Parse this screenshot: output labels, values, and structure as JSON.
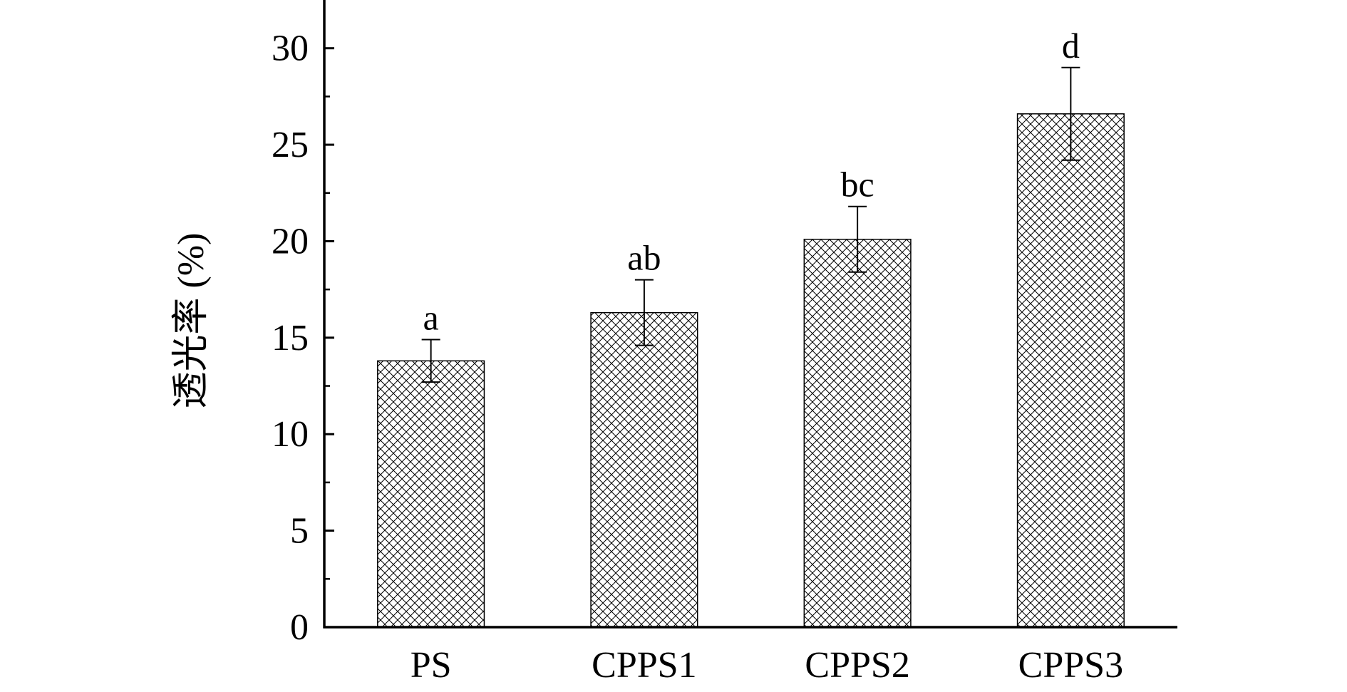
{
  "chart_data": {
    "type": "bar",
    "categories": [
      "PS",
      "CPPS1",
      "CPPS2",
      "CPPS3"
    ],
    "values": [
      13.8,
      16.3,
      20.1,
      26.6
    ],
    "errors": [
      1.1,
      1.7,
      1.7,
      2.4
    ],
    "significance_labels": [
      "a",
      "ab",
      "bc",
      "d"
    ],
    "ylabel": "透光率 (%)",
    "xlabel": "",
    "ylim": [
      0,
      32.5
    ],
    "y_ticks": [
      0,
      5,
      10,
      15,
      20,
      25,
      30
    ],
    "y_tick_labels": [
      "0",
      "5",
      "10",
      "15",
      "20",
      "25",
      "30"
    ],
    "grid": false,
    "bar_fill": "crosshatch",
    "colors": {
      "axis": "#000000",
      "bar_stroke": "#000000",
      "hatch": "#000000",
      "background": "#ffffff"
    }
  }
}
